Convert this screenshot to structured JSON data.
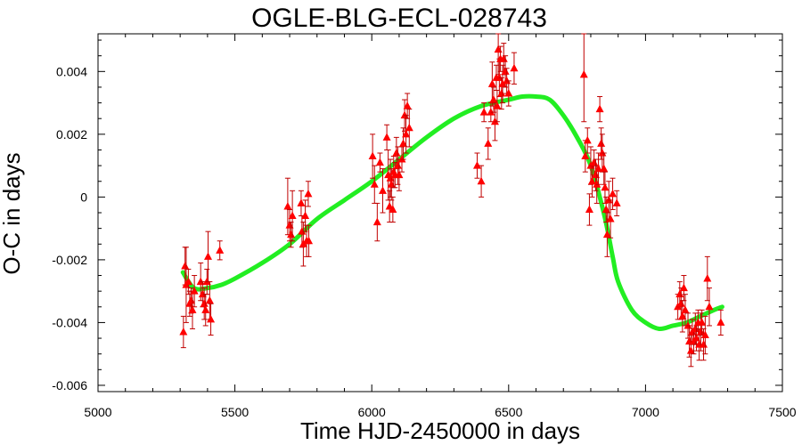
{
  "chart_data": {
    "type": "scatter",
    "title": "OGLE-BLG-ECL-028743",
    "xlabel": "Time HJD-2450000 in days",
    "ylabel": "O-C in days",
    "xlim": [
      5000,
      7500
    ],
    "ylim": [
      -0.0062,
      0.0052
    ],
    "xticks": [
      5000,
      5500,
      6000,
      6500,
      7000,
      7500
    ],
    "xtick_labels": [
      "5000",
      "5500",
      "6000",
      "6500",
      "7000",
      "7500"
    ],
    "yticks": [
      -0.006,
      -0.004,
      -0.002,
      0,
      0.002,
      0.004
    ],
    "ytick_labels": [
      "-0.006",
      "-0.004",
      "-0.002",
      "0",
      "0.002",
      "0.004"
    ],
    "grid": false,
    "colors": {
      "points": "#ff0000",
      "errorbars": "#c00000",
      "fit": "#22ee22"
    },
    "series": [
      {
        "kind": "points-with-errorbars",
        "marker": "triangle",
        "points": [
          {
            "x": 5312,
            "y": -0.0043,
            "err": 0.0005
          },
          {
            "x": 5318,
            "y": -0.0022,
            "err": 0.0006
          },
          {
            "x": 5322,
            "y": -0.0028,
            "err": 0.0012
          },
          {
            "x": 5330,
            "y": -0.0027,
            "err": 0.0004
          },
          {
            "x": 5335,
            "y": -0.0034,
            "err": 0.0004
          },
          {
            "x": 5340,
            "y": -0.0033,
            "err": 0.0004
          },
          {
            "x": 5345,
            "y": -0.0036,
            "err": 0.0006
          },
          {
            "x": 5352,
            "y": -0.003,
            "err": 0.0005
          },
          {
            "x": 5375,
            "y": -0.0027,
            "err": 0.0006
          },
          {
            "x": 5382,
            "y": -0.0031,
            "err": 0.0004
          },
          {
            "x": 5388,
            "y": -0.0034,
            "err": 0.0005
          },
          {
            "x": 5393,
            "y": -0.0036,
            "err": 0.0005
          },
          {
            "x": 5398,
            "y": -0.0027,
            "err": 0.0004
          },
          {
            "x": 5402,
            "y": -0.0019,
            "err": 0.0008
          },
          {
            "x": 5408,
            "y": -0.0033,
            "err": 0.0006
          },
          {
            "x": 5412,
            "y": -0.0039,
            "err": 0.0005
          },
          {
            "x": 5445,
            "y": -0.0017,
            "err": 0.0003
          },
          {
            "x": 5693,
            "y": -0.0003,
            "err": 0.0009
          },
          {
            "x": 5700,
            "y": -0.0009,
            "err": 0.0005
          },
          {
            "x": 5705,
            "y": -0.0012,
            "err": 0.0004
          },
          {
            "x": 5710,
            "y": -0.0006,
            "err": 0.0008
          },
          {
            "x": 5742,
            "y": -0.0002,
            "err": 0.0004
          },
          {
            "x": 5745,
            "y": -0.0011,
            "err": 0.0005
          },
          {
            "x": 5750,
            "y": -0.0015,
            "err": 0.0007
          },
          {
            "x": 5757,
            "y": -0.0006,
            "err": 0.0005
          },
          {
            "x": 5762,
            "y": -0.0014,
            "err": 0.0005
          },
          {
            "x": 5768,
            "y": 0.0001,
            "err": 0.0004
          },
          {
            "x": 5770,
            "y": -0.0014,
            "err": 0.0005
          },
          {
            "x": 6003,
            "y": 0.0013,
            "err": 0.0007
          },
          {
            "x": 6010,
            "y": 0.0004,
            "err": 0.0006
          },
          {
            "x": 6020,
            "y": -0.0008,
            "err": 0.0006
          },
          {
            "x": 6030,
            "y": 0.0011,
            "err": 0.0003
          },
          {
            "x": 6040,
            "y": 0.0002,
            "err": 0.0007
          },
          {
            "x": 6055,
            "y": 0.0019,
            "err": 0.0004
          },
          {
            "x": 6060,
            "y": 0.0007,
            "err": 0.0008
          },
          {
            "x": 6065,
            "y": -0.0003,
            "err": 0.0005
          },
          {
            "x": 6068,
            "y": 0.0006,
            "err": 0.0006
          },
          {
            "x": 6072,
            "y": 0.0004,
            "err": 0.0005
          },
          {
            "x": 6077,
            "y": -0.0004,
            "err": 0.0004
          },
          {
            "x": 6080,
            "y": 0.0008,
            "err": 0.0005
          },
          {
            "x": 6085,
            "y": 0.0007,
            "err": 0.0004
          },
          {
            "x": 6090,
            "y": 0.0014,
            "err": 0.0005
          },
          {
            "x": 6095,
            "y": 0.001,
            "err": 0.0006
          },
          {
            "x": 6100,
            "y": 0.0007,
            "err": 0.0005
          },
          {
            "x": 6110,
            "y": 0.0012,
            "err": 0.0004
          },
          {
            "x": 6115,
            "y": 0.0017,
            "err": 0.0005
          },
          {
            "x": 6120,
            "y": 0.0026,
            "err": 0.0005
          },
          {
            "x": 6125,
            "y": 0.002,
            "err": 0.0006
          },
          {
            "x": 6130,
            "y": 0.0029,
            "err": 0.0004
          },
          {
            "x": 6137,
            "y": 0.0022,
            "err": 0.0006
          },
          {
            "x": 6385,
            "y": 0.001,
            "err": 0.0004
          },
          {
            "x": 6400,
            "y": 0.0005,
            "err": 0.0005
          },
          {
            "x": 6410,
            "y": 0.0027,
            "err": 0.0003
          },
          {
            "x": 6425,
            "y": 0.0017,
            "err": 0.0005
          },
          {
            "x": 6435,
            "y": 0.0027,
            "err": 0.0003
          },
          {
            "x": 6440,
            "y": 0.0036,
            "err": 0.0007
          },
          {
            "x": 6445,
            "y": 0.0031,
            "err": 0.0004
          },
          {
            "x": 6450,
            "y": 0.0024,
            "err": 0.0006
          },
          {
            "x": 6455,
            "y": 0.0038,
            "err": 0.0004
          },
          {
            "x": 6458,
            "y": 0.0029,
            "err": 0.0005
          },
          {
            "x": 6462,
            "y": 0.0047,
            "err": 0.0008
          },
          {
            "x": 6466,
            "y": 0.0038,
            "err": 0.0006
          },
          {
            "x": 6470,
            "y": 0.0044,
            "err": 0.0004
          },
          {
            "x": 6474,
            "y": 0.0033,
            "err": 0.0005
          },
          {
            "x": 6478,
            "y": 0.0036,
            "err": 0.0006
          },
          {
            "x": 6482,
            "y": 0.0044,
            "err": 0.0005
          },
          {
            "x": 6488,
            "y": 0.004,
            "err": 0.0005
          },
          {
            "x": 6493,
            "y": 0.0037,
            "err": 0.0004
          },
          {
            "x": 6500,
            "y": 0.0033,
            "err": 0.0004
          },
          {
            "x": 6520,
            "y": 0.0041,
            "err": 0.0005
          },
          {
            "x": 6775,
            "y": 0.0039,
            "err": 0.0015
          },
          {
            "x": 6780,
            "y": 0.0013,
            "err": 0.0005
          },
          {
            "x": 6788,
            "y": 0.0018,
            "err": 0.0004
          },
          {
            "x": 6795,
            "y": -0.0004,
            "err": 0.0005
          },
          {
            "x": 6800,
            "y": 0.001,
            "err": 0.0006
          },
          {
            "x": 6805,
            "y": 0.0005,
            "err": 0.0005
          },
          {
            "x": 6812,
            "y": 0.0011,
            "err": 0.0004
          },
          {
            "x": 6818,
            "y": 0.0007,
            "err": 0.0005
          },
          {
            "x": 6822,
            "y": 0.0004,
            "err": 0.0006
          },
          {
            "x": 6828,
            "y": 0.0009,
            "err": 0.0005
          },
          {
            "x": 6833,
            "y": 0.0028,
            "err": 0.0004
          },
          {
            "x": 6838,
            "y": 0.0017,
            "err": 0.0005
          },
          {
            "x": 6842,
            "y": 0.0014,
            "err": 0.0006
          },
          {
            "x": 6848,
            "y": 0.0009,
            "err": 0.0005
          },
          {
            "x": 6852,
            "y": 0.0003,
            "err": 0.0005
          },
          {
            "x": 6856,
            "y": -0.0004,
            "err": 0.0004
          },
          {
            "x": 6860,
            "y": -0.0012,
            "err": 0.0007
          },
          {
            "x": 6866,
            "y": -0.0001,
            "err": 0.0006
          },
          {
            "x": 6872,
            "y": -0.0007,
            "err": 0.0006
          },
          {
            "x": 6880,
            "y": 0.0001,
            "err": 0.0005
          },
          {
            "x": 6895,
            "y": -0.0002,
            "err": 0.0004
          },
          {
            "x": 7118,
            "y": -0.0035,
            "err": 0.0004
          },
          {
            "x": 7125,
            "y": -0.0031,
            "err": 0.0004
          },
          {
            "x": 7130,
            "y": -0.0034,
            "err": 0.0005
          },
          {
            "x": 7135,
            "y": -0.0038,
            "err": 0.0005
          },
          {
            "x": 7140,
            "y": -0.0029,
            "err": 0.0004
          },
          {
            "x": 7145,
            "y": -0.0036,
            "err": 0.0005
          },
          {
            "x": 7155,
            "y": -0.0041,
            "err": 0.0004
          },
          {
            "x": 7160,
            "y": -0.0046,
            "err": 0.0005
          },
          {
            "x": 7166,
            "y": -0.0049,
            "err": 0.0005
          },
          {
            "x": 7171,
            "y": -0.0043,
            "err": 0.0004
          },
          {
            "x": 7176,
            "y": -0.0046,
            "err": 0.0004
          },
          {
            "x": 7182,
            "y": -0.0042,
            "err": 0.0005
          },
          {
            "x": 7186,
            "y": -0.0045,
            "err": 0.0004
          },
          {
            "x": 7192,
            "y": -0.004,
            "err": 0.0004
          },
          {
            "x": 7196,
            "y": -0.0047,
            "err": 0.0005
          },
          {
            "x": 7202,
            "y": -0.0043,
            "err": 0.0006
          },
          {
            "x": 7206,
            "y": -0.004,
            "err": 0.0004
          },
          {
            "x": 7212,
            "y": -0.0047,
            "err": 0.0005
          },
          {
            "x": 7218,
            "y": -0.0044,
            "err": 0.0006
          },
          {
            "x": 7226,
            "y": -0.0026,
            "err": 0.0007
          },
          {
            "x": 7233,
            "y": -0.0035,
            "err": 0.0006
          },
          {
            "x": 7275,
            "y": -0.004,
            "err": 0.0004
          }
        ]
      },
      {
        "kind": "fit-curve",
        "x": [
          5310,
          5350,
          5400,
          5450,
          5500,
          5600,
          5700,
          5800,
          5900,
          6000,
          6100,
          6200,
          6300,
          6400,
          6500,
          6550,
          6600,
          6650,
          6700,
          6750,
          6800,
          6850,
          6880,
          6900,
          6950,
          7000,
          7050,
          7100,
          7150,
          7200,
          7250,
          7280
        ],
        "y": [
          -0.0024,
          -0.0029,
          -0.0029,
          -0.0028,
          -0.0026,
          -0.0021,
          -0.0015,
          -0.0007,
          -0.0001,
          0.0005,
          0.0012,
          0.0019,
          0.0025,
          0.0029,
          0.0031,
          0.0032,
          0.0032,
          0.0031,
          0.0026,
          0.0019,
          0.001,
          -0.0006,
          -0.0019,
          -0.0027,
          -0.0036,
          -0.004,
          -0.0042,
          -0.0041,
          -0.004,
          -0.0038,
          -0.0036,
          -0.0035
        ]
      }
    ]
  }
}
